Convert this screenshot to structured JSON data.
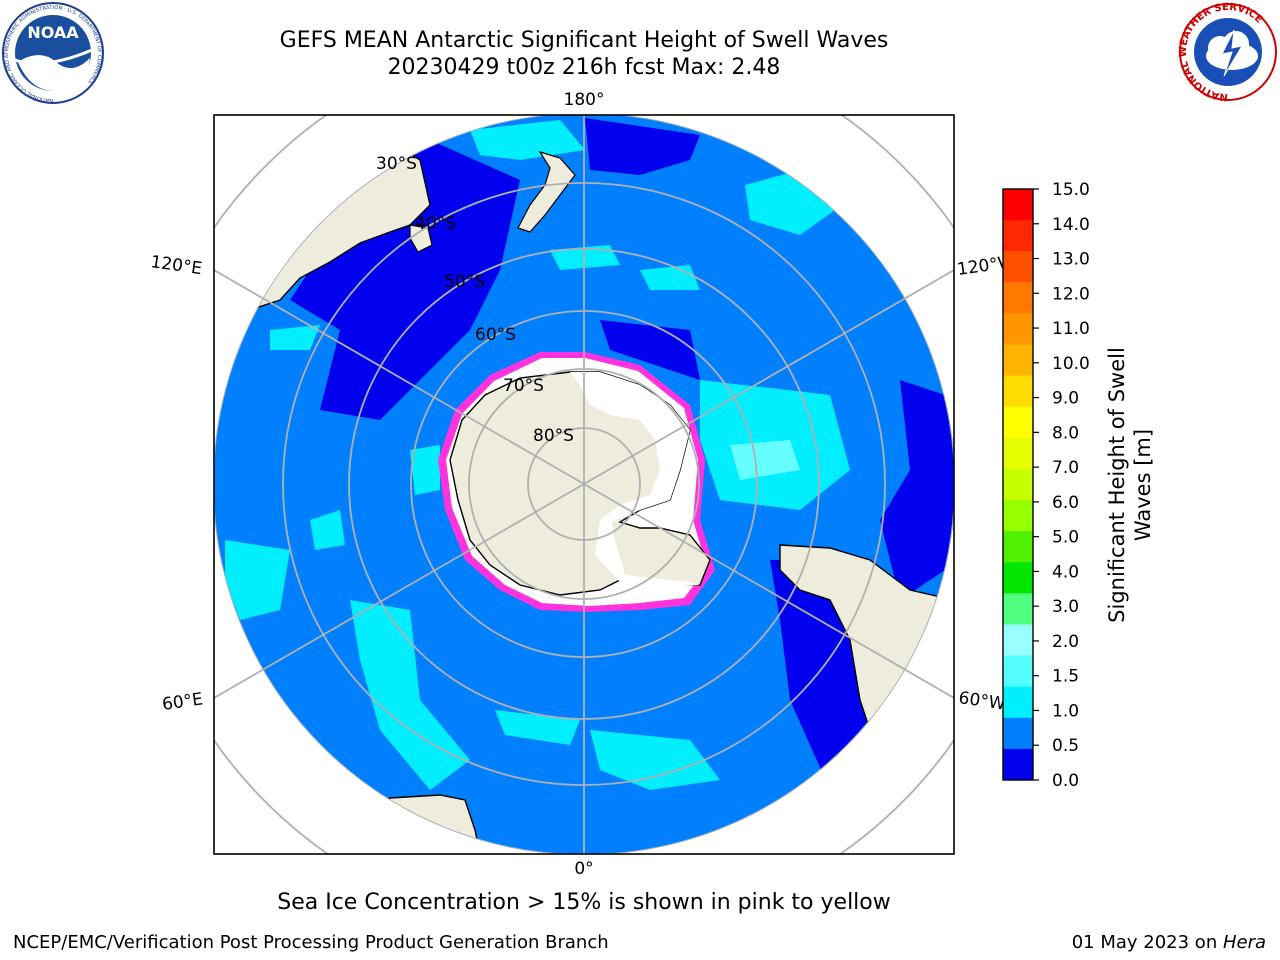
{
  "header": {
    "title_line1": "GEFS MEAN Antarctic Significant Height of Swell Waves",
    "title_line2": "20230429 t00z 216h fcst   Max: 2.48"
  },
  "logos": {
    "noaa_text": "NOAA",
    "noaa_ring_text": "NATIONAL OCEANIC AND ATMOSPHERIC ADMINISTRATION · U.S. DEPARTMENT OF COMMERCE",
    "nws_ring_text": "NATIONAL WEATHER SERVICE"
  },
  "map": {
    "projection": "south-polar-stereographic",
    "longitude_labels": {
      "top": "180°",
      "bottom": "0°",
      "left_upper": "120°E",
      "left_lower": "60°E",
      "right_upper": "120°W",
      "right_lower": "60°W"
    },
    "latitude_labels": [
      "30°S",
      "40°S",
      "50°S",
      "60°S",
      "70°S",
      "80°S"
    ],
    "colors": {
      "land": "#eeecdc",
      "ice_edge": "#ff33dd",
      "ocean_base": "#0080ff",
      "ocean_low": "#0000ee",
      "ocean_mid": "#00eeff",
      "ocean_high": "#99ffff",
      "grid": "#b0b0b0"
    }
  },
  "colorbar": {
    "label": "Significant Height of Swell Waves [m]",
    "label_line1": "Significant Height of Swell",
    "label_line2": "Waves [m]",
    "ticks": [
      "15.0",
      "14.0",
      "13.0",
      "12.0",
      "11.0",
      "10.0",
      "9.0",
      "8.0",
      "7.0",
      "6.0",
      "5.0",
      "4.0",
      "3.0",
      "2.0",
      "1.5",
      "1.0",
      "0.5",
      "0.0"
    ],
    "colors_top_to_bottom": [
      "#ff0000",
      "#ff2800",
      "#ff5000",
      "#ff7800",
      "#ff9600",
      "#ffb400",
      "#ffdc00",
      "#ffff00",
      "#e6ff00",
      "#c8ff00",
      "#96ff00",
      "#50f000",
      "#00e600",
      "#50ff80",
      "#99ffff",
      "#55ffff",
      "#00eeff",
      "#0080ff",
      "#0000ee"
    ]
  },
  "note": "Sea Ice Concentration > 15% is shown in pink to yellow",
  "footer": {
    "left": "NCEP/EMC/Verification Post Processing Product Generation Branch",
    "right_date": "01 May 2023 on ",
    "right_host": "Hera"
  }
}
